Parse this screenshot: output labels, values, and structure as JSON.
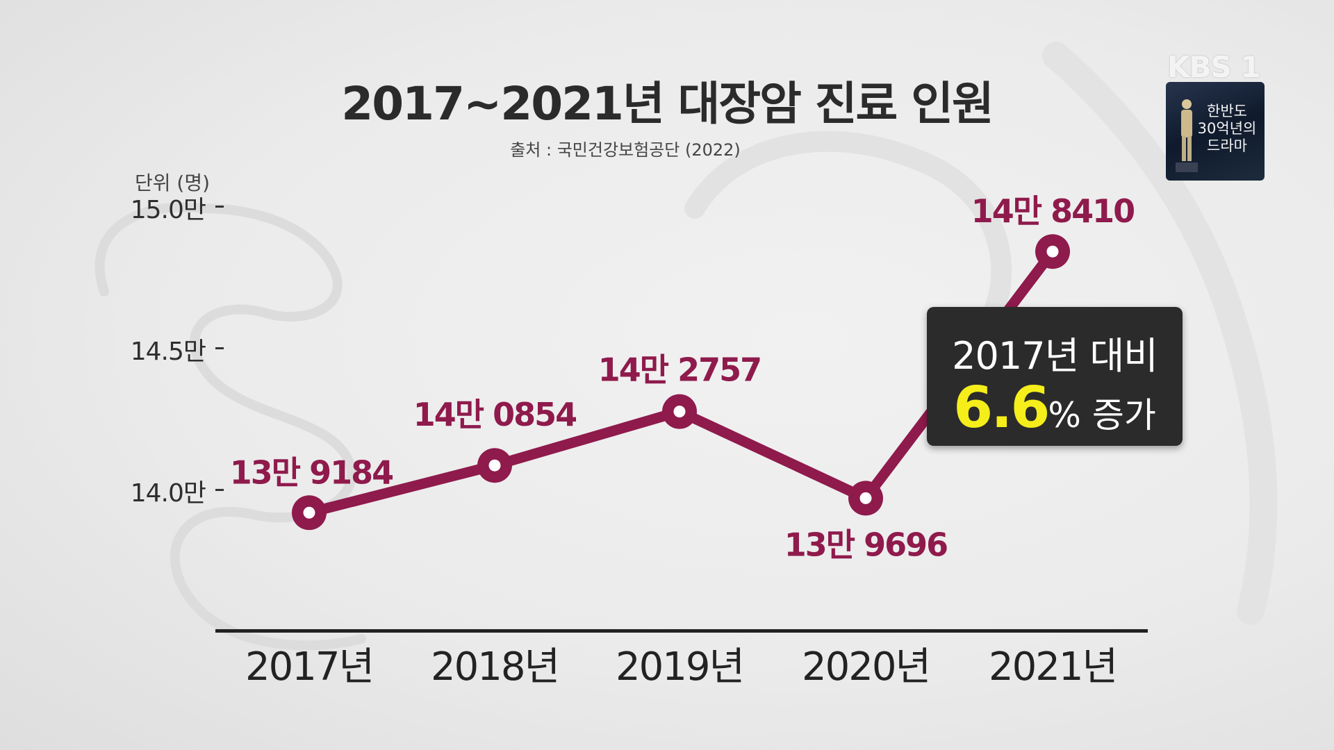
{
  "chart_data": {
    "type": "line",
    "title": "2017~2021년 대장암 진료 인원",
    "source": "출처 : 국민건강보험공단 (2022)",
    "unit_label": "단위 (명)",
    "categories": [
      "2017년",
      "2018년",
      "2019년",
      "2020년",
      "2021년"
    ],
    "values": [
      139184,
      140854,
      142757,
      139696,
      148410
    ],
    "value_labels": [
      "13만 9184",
      "14만 0854",
      "14만 2757",
      "13만 9696",
      "14만 8410"
    ],
    "y_ticks": [
      {
        "value": 140000,
        "label": "14.0만"
      },
      {
        "value": 145000,
        "label": "14.5만"
      },
      {
        "value": 150000,
        "label": "15.0만"
      }
    ],
    "ylim": [
      136000,
      153000
    ],
    "grid": false,
    "line_color": "#8f1a4c",
    "annotation": {
      "line1": "2017년 대비",
      "value": "6.6",
      "rest": "% 증가",
      "value_color": "#f5ee1a",
      "background": "#2b2b2b"
    }
  },
  "overlay": {
    "logo": "KBS 1",
    "program_badge": [
      "한반도",
      "30억년의",
      "드라마"
    ]
  }
}
